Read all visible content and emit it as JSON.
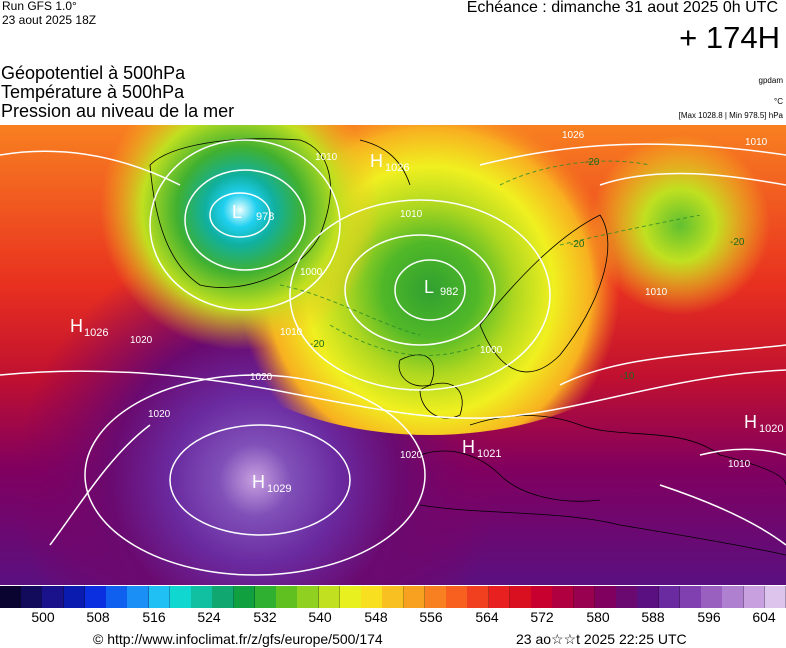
{
  "header": {
    "run_label": "Run GFS 1.0°",
    "run_date": "23 aout 2025 18Z",
    "echeance": "Echéance : dimanche 31 aout 2025 0h UTC",
    "lead_time": "+ 174H",
    "title_lines": [
      "Géopotentiel à 500hPa",
      "Température à 500hPa",
      "Pression au niveau de la mer"
    ],
    "units_gpdam": "gpdam",
    "units_temp": "°C",
    "pressure_range": "[Max 1028.8 | Min 978.5] hPa"
  },
  "map": {
    "centers": [
      {
        "type": "H",
        "value": "1026"
      },
      {
        "type": "L",
        "value": "978"
      },
      {
        "type": "L",
        "value": "982"
      },
      {
        "type": "H",
        "value": "1026"
      },
      {
        "type": "H",
        "value": "1029"
      },
      {
        "type": "H",
        "value": "1021"
      },
      {
        "type": "H",
        "value": "1020"
      }
    ],
    "isobar_labels": [
      "1010",
      "1020",
      "1020",
      "1000",
      "1010",
      "1000",
      "1010",
      "1020",
      "1026",
      "1010",
      "1020",
      "1010",
      "1010"
    ],
    "temp_labels": [
      "-20",
      "-20",
      "-20",
      "-20",
      "-10"
    ]
  },
  "legend": {
    "colors": [
      "#0a0530",
      "#120a5a",
      "#1a128a",
      "#0a1cb0",
      "#0a2fe0",
      "#1060f0",
      "#1a8ff5",
      "#20c0f5",
      "#10d8d0",
      "#10c0a0",
      "#10a870",
      "#10a040",
      "#30b030",
      "#60c020",
      "#90d020",
      "#c0e020",
      "#e8f020",
      "#f8e020",
      "#f8c020",
      "#f8a020",
      "#f88020",
      "#f86020",
      "#f04020",
      "#e82020",
      "#d81020",
      "#c80030",
      "#b00040",
      "#980050",
      "#800060",
      "#6a0a70",
      "#5a1080",
      "#6a2aa0",
      "#8040b0",
      "#9a60c0",
      "#b080d0",
      "#c8a0e0",
      "#dcc4ec"
    ],
    "ticks": [
      "500",
      "508",
      "516",
      "524",
      "532",
      "540",
      "548",
      "556",
      "564",
      "572",
      "580",
      "588",
      "596",
      "604"
    ]
  },
  "footer": {
    "url": "© http://www.infoclimat.fr/z/gfs/europe/500/174",
    "generated": "23 ao☆☆t 2025 22:25 UTC"
  }
}
